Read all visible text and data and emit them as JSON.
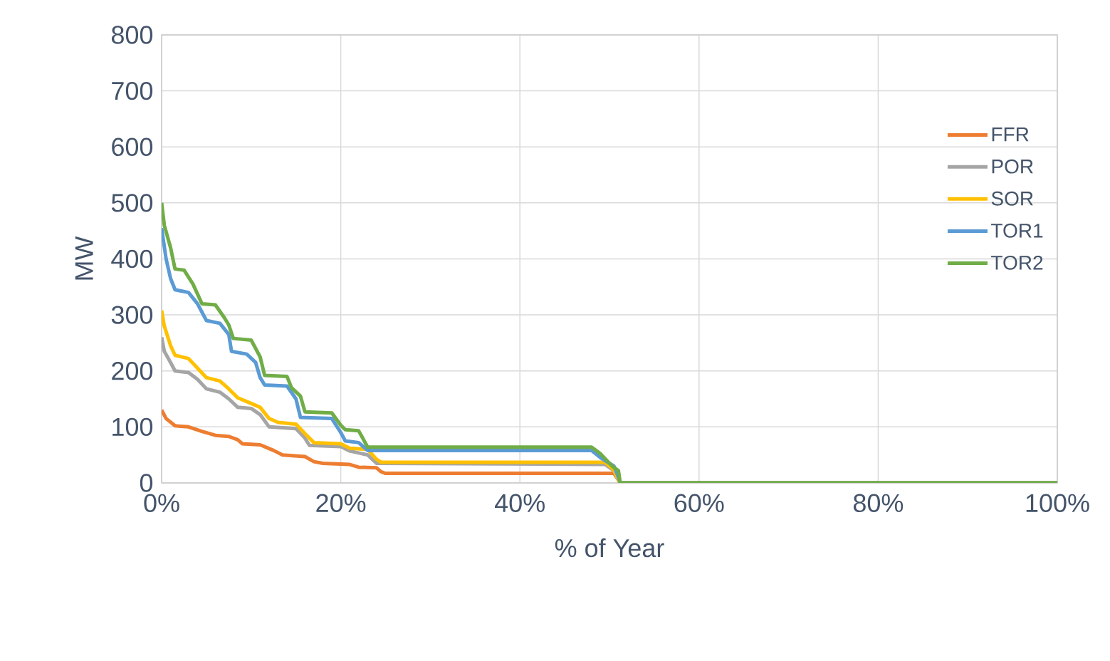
{
  "chart_data": {
    "type": "line",
    "xlabel": "% of Year",
    "ylabel": "MW",
    "xlim": [
      0,
      100
    ],
    "ylim": [
      0,
      800
    ],
    "xticks": [
      {
        "value": 0,
        "label": "0%"
      },
      {
        "value": 20,
        "label": "20%"
      },
      {
        "value": 40,
        "label": "40%"
      },
      {
        "value": 60,
        "label": "60%"
      },
      {
        "value": 80,
        "label": "80%"
      },
      {
        "value": 100,
        "label": "100%"
      }
    ],
    "yticks": [
      0,
      100,
      200,
      300,
      400,
      500,
      600,
      700,
      800
    ],
    "grid": true,
    "legend": "right",
    "marker": "none",
    "line_style": "solid",
    "series": [
      {
        "name": "FFR",
        "color": "#ed7d31",
        "x": [
          0,
          0.5,
          1.5,
          3,
          4.5,
          6,
          7.5,
          8.5,
          9,
          11,
          12.5,
          13.5,
          16,
          17,
          18,
          21,
          22,
          24,
          24.5,
          25,
          50.5,
          51,
          51.2,
          100
        ],
        "values": [
          130,
          115,
          102,
          100,
          92,
          85,
          83,
          77,
          70,
          68,
          58,
          50,
          47,
          38,
          35,
          33,
          28,
          27,
          20,
          17,
          17,
          5,
          0,
          0
        ]
      },
      {
        "name": "POR",
        "color": "#a5a5a5",
        "x": [
          0,
          0.3,
          1,
          1.5,
          3,
          4,
          5,
          6.5,
          7.5,
          8.5,
          10,
          11,
          12,
          15,
          16,
          16.5,
          20,
          21,
          23,
          24,
          49.5,
          50.5,
          51,
          51.2,
          100
        ],
        "values": [
          260,
          235,
          215,
          200,
          197,
          185,
          168,
          162,
          150,
          135,
          133,
          122,
          100,
          97,
          80,
          67,
          65,
          57,
          50,
          35,
          33,
          22,
          5,
          0,
          0
        ]
      },
      {
        "name": "SOR",
        "color": "#ffc000",
        "x": [
          0,
          0.3,
          1,
          1.5,
          3,
          4,
          5,
          6.5,
          7.5,
          8.5,
          10,
          11,
          12,
          13,
          15,
          16,
          17,
          20,
          21,
          23,
          24,
          24.5,
          49.5,
          50.5,
          51,
          51.2,
          100
        ],
        "values": [
          308,
          280,
          245,
          228,
          222,
          205,
          188,
          182,
          168,
          152,
          142,
          135,
          115,
          108,
          105,
          88,
          72,
          70,
          62,
          60,
          42,
          37,
          37,
          23,
          5,
          0,
          0
        ]
      },
      {
        "name": "TOR1",
        "color": "#5b9bd5",
        "x": [
          0,
          0.5,
          1,
          1.5,
          3,
          4,
          5,
          6.5,
          7.5,
          7.8,
          9.5,
          10.5,
          11,
          11.5,
          14,
          15,
          15.5,
          19,
          20,
          20.5,
          22,
          23,
          48,
          49,
          50.5,
          51,
          51.2,
          100
        ],
        "values": [
          455,
          400,
          365,
          345,
          340,
          320,
          290,
          285,
          265,
          235,
          230,
          215,
          188,
          175,
          173,
          150,
          117,
          115,
          90,
          75,
          72,
          58,
          58,
          45,
          30,
          10,
          0,
          0
        ]
      },
      {
        "name": "TOR2",
        "color": "#70ad47",
        "x": [
          0,
          0.3,
          1,
          1.5,
          2.5,
          3.5,
          4.5,
          6,
          7,
          7.5,
          8,
          10,
          11,
          11.5,
          14,
          14.5,
          15.5,
          16,
          19,
          20,
          20.5,
          22,
          23,
          48,
          49,
          50.3,
          51,
          51.2,
          100
        ],
        "values": [
          500,
          460,
          420,
          382,
          380,
          355,
          320,
          318,
          295,
          282,
          258,
          255,
          225,
          192,
          190,
          170,
          155,
          127,
          125,
          103,
          95,
          93,
          64,
          64,
          52,
          30,
          22,
          0,
          0
        ]
      }
    ]
  }
}
